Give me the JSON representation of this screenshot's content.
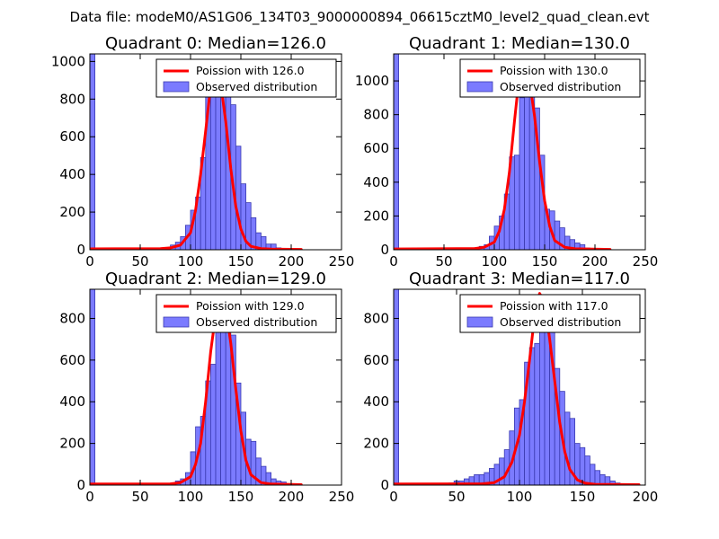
{
  "figure": {
    "title": "Data file: modeM0/AS1G06_134T03_9000000894_06615cztM0_level2_quad_clean.evt"
  },
  "colors": {
    "bars": "#7b7bff",
    "bar_edge": "#3a3ab0",
    "poisson": "#ff0000",
    "axes": "#000000"
  },
  "chart_data": [
    {
      "type": "bar",
      "title": "Quadrant 0: Median=126.0",
      "median": 126.0,
      "bin_width": 5,
      "xlim": [
        0,
        250
      ],
      "ylim": [
        0,
        1040
      ],
      "xticks": [
        0,
        50,
        100,
        150,
        200,
        250
      ],
      "yticks": [
        0,
        200,
        400,
        600,
        800,
        1000
      ],
      "legend": {
        "position": "top-right",
        "line_label": "Poission with 126.0",
        "bar_label": "Observed distribution"
      },
      "bars": [
        {
          "x": 0,
          "y": 1040
        },
        {
          "x": 75,
          "y": 10
        },
        {
          "x": 80,
          "y": 25
        },
        {
          "x": 85,
          "y": 40
        },
        {
          "x": 90,
          "y": 70
        },
        {
          "x": 95,
          "y": 130
        },
        {
          "x": 100,
          "y": 210
        },
        {
          "x": 105,
          "y": 280
        },
        {
          "x": 110,
          "y": 490
        },
        {
          "x": 115,
          "y": 820
        },
        {
          "x": 120,
          "y": 860
        },
        {
          "x": 125,
          "y": 960
        },
        {
          "x": 130,
          "y": 980
        },
        {
          "x": 135,
          "y": 880
        },
        {
          "x": 140,
          "y": 770
        },
        {
          "x": 145,
          "y": 550
        },
        {
          "x": 150,
          "y": 350
        },
        {
          "x": 155,
          "y": 250
        },
        {
          "x": 160,
          "y": 170
        },
        {
          "x": 165,
          "y": 90
        },
        {
          "x": 170,
          "y": 70
        },
        {
          "x": 175,
          "y": 30
        },
        {
          "x": 180,
          "y": 30
        },
        {
          "x": 185,
          "y": 10
        }
      ],
      "poisson": {
        "label": "Poission with 126.0",
        "x": [
          0,
          70,
          80,
          90,
          100,
          105,
          110,
          115,
          120,
          125,
          130,
          135,
          140,
          145,
          150,
          155,
          160,
          170,
          180,
          210
        ],
        "y": [
          5,
          6,
          10,
          25,
          90,
          210,
          400,
          630,
          870,
          960,
          880,
          680,
          430,
          230,
          110,
          45,
          18,
          6,
          4,
          2
        ]
      }
    },
    {
      "type": "bar",
      "title": "Quadrant 1: Median=130.0",
      "median": 130.0,
      "bin_width": 5,
      "xlim": [
        0,
        250
      ],
      "ylim": [
        0,
        1160
      ],
      "xticks": [
        0,
        50,
        100,
        150,
        200,
        250
      ],
      "yticks": [
        0,
        200,
        400,
        600,
        800,
        1000
      ],
      "legend": {
        "position": "top-right",
        "line_label": "Poission with 130.0",
        "bar_label": "Observed distribution"
      },
      "bars": [
        {
          "x": 0,
          "y": 1160
        },
        {
          "x": 85,
          "y": 20
        },
        {
          "x": 90,
          "y": 30
        },
        {
          "x": 95,
          "y": 80
        },
        {
          "x": 100,
          "y": 140
        },
        {
          "x": 105,
          "y": 200
        },
        {
          "x": 110,
          "y": 330
        },
        {
          "x": 115,
          "y": 550
        },
        {
          "x": 120,
          "y": 560
        },
        {
          "x": 125,
          "y": 900
        },
        {
          "x": 130,
          "y": 1090
        },
        {
          "x": 135,
          "y": 1000
        },
        {
          "x": 140,
          "y": 840
        },
        {
          "x": 145,
          "y": 560
        },
        {
          "x": 150,
          "y": 240
        },
        {
          "x": 155,
          "y": 230
        },
        {
          "x": 160,
          "y": 170
        },
        {
          "x": 165,
          "y": 130
        },
        {
          "x": 170,
          "y": 80
        },
        {
          "x": 175,
          "y": 60
        },
        {
          "x": 180,
          "y": 40
        },
        {
          "x": 185,
          "y": 30
        },
        {
          "x": 190,
          "y": 10
        }
      ],
      "poisson": {
        "label": "Poission with 130.0",
        "x": [
          0,
          80,
          90,
          100,
          105,
          110,
          115,
          120,
          125,
          130,
          135,
          140,
          145,
          150,
          155,
          160,
          170,
          180,
          215
        ],
        "y": [
          5,
          7,
          15,
          45,
          110,
          240,
          460,
          760,
          1040,
          1110,
          1000,
          790,
          520,
          290,
          140,
          55,
          15,
          6,
          2
        ]
      }
    },
    {
      "type": "bar",
      "title": "Quadrant 2: Median=129.0",
      "median": 129.0,
      "bin_width": 5,
      "xlim": [
        0,
        250
      ],
      "ylim": [
        0,
        940
      ],
      "xticks": [
        0,
        50,
        100,
        150,
        200,
        250
      ],
      "yticks": [
        0,
        200,
        400,
        600,
        800
      ],
      "legend": {
        "position": "top-right",
        "line_label": "Poission with 129.0",
        "bar_label": "Observed distribution"
      },
      "bars": [
        {
          "x": 0,
          "y": 940
        },
        {
          "x": 80,
          "y": 10
        },
        {
          "x": 85,
          "y": 20
        },
        {
          "x": 90,
          "y": 30
        },
        {
          "x": 95,
          "y": 60
        },
        {
          "x": 100,
          "y": 160
        },
        {
          "x": 105,
          "y": 280
        },
        {
          "x": 110,
          "y": 330
        },
        {
          "x": 115,
          "y": 500
        },
        {
          "x": 120,
          "y": 580
        },
        {
          "x": 125,
          "y": 830
        },
        {
          "x": 130,
          "y": 840
        },
        {
          "x": 135,
          "y": 830
        },
        {
          "x": 140,
          "y": 720
        },
        {
          "x": 145,
          "y": 490
        },
        {
          "x": 150,
          "y": 350
        },
        {
          "x": 155,
          "y": 220
        },
        {
          "x": 160,
          "y": 210
        },
        {
          "x": 165,
          "y": 130
        },
        {
          "x": 170,
          "y": 90
        },
        {
          "x": 175,
          "y": 60
        },
        {
          "x": 180,
          "y": 30
        },
        {
          "x": 185,
          "y": 20
        },
        {
          "x": 190,
          "y": 15
        }
      ],
      "poisson": {
        "label": "Poission with 129.0",
        "x": [
          0,
          80,
          90,
          100,
          105,
          110,
          115,
          120,
          125,
          130,
          135,
          140,
          145,
          150,
          155,
          160,
          170,
          180,
          210
        ],
        "y": [
          5,
          6,
          12,
          40,
          100,
          200,
          400,
          640,
          820,
          900,
          850,
          680,
          460,
          260,
          120,
          50,
          12,
          5,
          2
        ]
      }
    },
    {
      "type": "bar",
      "title": "Quadrant 3: Median=117.0",
      "median": 117.0,
      "bin_width": 4,
      "xlim": [
        0,
        200
      ],
      "ylim": [
        0,
        940
      ],
      "xticks": [
        0,
        50,
        100,
        150,
        200
      ],
      "yticks": [
        0,
        200,
        400,
        600,
        800
      ],
      "legend": {
        "position": "top-right",
        "line_label": "Poission with 117.0",
        "bar_label": "Observed distribution"
      },
      "bars": [
        {
          "x": 0,
          "y": 940
        },
        {
          "x": 40,
          "y": 5
        },
        {
          "x": 44,
          "y": 10
        },
        {
          "x": 48,
          "y": 20
        },
        {
          "x": 52,
          "y": 20
        },
        {
          "x": 56,
          "y": 30
        },
        {
          "x": 60,
          "y": 40
        },
        {
          "x": 64,
          "y": 50
        },
        {
          "x": 68,
          "y": 50
        },
        {
          "x": 72,
          "y": 60
        },
        {
          "x": 76,
          "y": 80
        },
        {
          "x": 80,
          "y": 100
        },
        {
          "x": 84,
          "y": 130
        },
        {
          "x": 88,
          "y": 170
        },
        {
          "x": 92,
          "y": 260
        },
        {
          "x": 96,
          "y": 370
        },
        {
          "x": 100,
          "y": 410
        },
        {
          "x": 104,
          "y": 590
        },
        {
          "x": 108,
          "y": 660
        },
        {
          "x": 112,
          "y": 680
        },
        {
          "x": 116,
          "y": 840
        },
        {
          "x": 120,
          "y": 850
        },
        {
          "x": 124,
          "y": 760
        },
        {
          "x": 128,
          "y": 560
        },
        {
          "x": 132,
          "y": 450
        },
        {
          "x": 136,
          "y": 350
        },
        {
          "x": 140,
          "y": 320
        },
        {
          "x": 144,
          "y": 200
        },
        {
          "x": 148,
          "y": 180
        },
        {
          "x": 152,
          "y": 140
        },
        {
          "x": 156,
          "y": 100
        },
        {
          "x": 160,
          "y": 70
        },
        {
          "x": 164,
          "y": 50
        },
        {
          "x": 168,
          "y": 40
        },
        {
          "x": 172,
          "y": 20
        },
        {
          "x": 176,
          "y": 10
        }
      ],
      "poisson": {
        "label": "Poission with 117.0",
        "x": [
          0,
          70,
          80,
          88,
          94,
          100,
          104,
          108,
          112,
          116,
          120,
          124,
          128,
          132,
          136,
          140,
          146,
          152,
          160,
          195
        ],
        "y": [
          5,
          6,
          12,
          40,
          110,
          240,
          400,
          600,
          810,
          920,
          880,
          700,
          500,
          300,
          160,
          75,
          25,
          10,
          4,
          2
        ]
      }
    }
  ]
}
